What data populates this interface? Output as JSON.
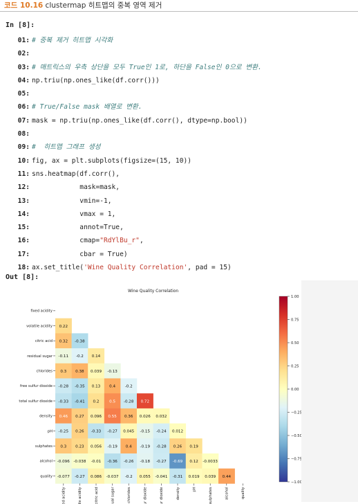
{
  "caption": {
    "number": "코드 10.16",
    "text": "clustermap 히트맵의 중복 영역 제거"
  },
  "input_label": "In [8]:",
  "output_label": "Out [8]:",
  "code_lines": [
    {
      "n": "01:",
      "type": "comment",
      "text": "# 중복 제거 히트맵 시각화"
    },
    {
      "n": "02:",
      "type": "code",
      "text": ""
    },
    {
      "n": "03:",
      "type": "comment",
      "text": "# 매트릭스의 우측 상단을 모두 True인 1로, 하단을 False인 0으로 변환."
    },
    {
      "n": "04:",
      "type": "code",
      "text": "np.triu(np.ones_like(df.corr()))"
    },
    {
      "n": "05:",
      "type": "code",
      "text": ""
    },
    {
      "n": "06:",
      "type": "comment",
      "text": "# True/False mask 배열로 변환."
    },
    {
      "n": "07:",
      "type": "code",
      "text": "mask = np.triu(np.ones_like(df.corr(), dtype=np.bool))"
    },
    {
      "n": "08:",
      "type": "code",
      "text": ""
    },
    {
      "n": "09:",
      "type": "comment",
      "text": "#  히트맵 그래프 생성"
    },
    {
      "n": "10:",
      "type": "code",
      "text": "fig, ax = plt.subplots(figsize=(15, 10))"
    },
    {
      "n": "11:",
      "type": "code",
      "text": "sns.heatmap(df.corr(),"
    },
    {
      "n": "12:",
      "type": "code",
      "text": "            mask=mask,"
    },
    {
      "n": "13:",
      "type": "code",
      "text": "            vmin=-1,"
    },
    {
      "n": "14:",
      "type": "code",
      "text": "            vmax = 1,"
    },
    {
      "n": "15:",
      "type": "code",
      "text": "            annot=True,"
    },
    {
      "n": "16:",
      "type": "code",
      "pre": "            cmap=",
      "str": "\"RdYlBu_r\"",
      "post": ","
    },
    {
      "n": "17:",
      "type": "code",
      "text": "            cbar = True)"
    },
    {
      "n": "18:",
      "type": "code",
      "pre": "ax.set_title(",
      "str": "'Wine Quality Correlation'",
      "post": ", pad = 15)"
    }
  ],
  "chart_data": {
    "type": "heatmap",
    "title": "Wine Quality Correlation",
    "labels": [
      "fixed acidity",
      "volatile acidity",
      "citric acid",
      "residual sugar",
      "chlorides",
      "free sulfur dioxide",
      "total sulfur dioxide",
      "density",
      "pH",
      "sulphates",
      "alcohol",
      "quality"
    ],
    "mask": "upper triangle incl. diagonal",
    "values": [
      [],
      [
        0.22
      ],
      [
        0.32,
        -0.38
      ],
      [
        -0.11,
        -0.2,
        0.14
      ],
      [
        0.3,
        0.38,
        0.039,
        -0.13
      ],
      [
        -0.28,
        -0.35,
        0.13,
        0.4,
        -0.2
      ],
      [
        -0.33,
        -0.41,
        0.2,
        0.5,
        -0.28,
        0.72
      ],
      [
        0.46,
        0.27,
        0.096,
        0.55,
        0.36,
        0.026,
        0.032
      ],
      [
        -0.25,
        0.26,
        -0.33,
        -0.27,
        0.045,
        -0.15,
        -0.24,
        0.012
      ],
      [
        0.3,
        0.23,
        0.056,
        -0.19,
        0.4,
        -0.19,
        -0.28,
        0.26,
        0.19
      ],
      [
        -0.096,
        -0.038,
        -0.01,
        -0.36,
        -0.26,
        -0.18,
        -0.27,
        -0.69,
        0.12,
        -0.0033
      ],
      [
        -0.077,
        -0.27,
        0.086,
        -0.037,
        -0.2,
        0.055,
        -0.041,
        -0.31,
        0.019,
        0.039,
        0.44
      ]
    ],
    "labels_text": [
      [],
      [
        "0.22"
      ],
      [
        "0.32",
        "-0.38"
      ],
      [
        "-0.11",
        "-0.2",
        "0.14"
      ],
      [
        "0.3",
        "0.38",
        "0.039",
        "-0.13"
      ],
      [
        "-0.28",
        "-0.35",
        "0.13",
        "0.4",
        "-0.2"
      ],
      [
        "-0.33",
        "-0.41",
        "0.2",
        "0.5",
        "-0.28",
        "0.72"
      ],
      [
        "0.46",
        "0.27",
        "0.096",
        "0.55",
        "0.36",
        "0.026",
        "0.032"
      ],
      [
        "-0.25",
        "0.26",
        "-0.33",
        "-0.27",
        "0.045",
        "-0.15",
        "-0.24",
        "0.012"
      ],
      [
        "0.3",
        "0.23",
        "0.056",
        "-0.19",
        "0.4",
        "-0.19",
        "-0.28",
        "0.26",
        "0.19"
      ],
      [
        "-0.096",
        "-0.038",
        "-0.01",
        "-0.36",
        "-0.26",
        "-0.18",
        "-0.27",
        "-0.69",
        "0.12",
        "-0.0033"
      ],
      [
        "-0.077",
        "-0.27",
        "0.086",
        "-0.037",
        "-0.2",
        "0.055",
        "-0.041",
        "-0.31",
        "0.019",
        "0.039",
        "0.44"
      ]
    ],
    "vmin": -1,
    "vmax": 1,
    "cmap": "RdYlBu_r",
    "colorbar_ticks": [
      1.0,
      0.75,
      0.5,
      0.25,
      0.0,
      -0.25,
      -0.5,
      -0.75,
      -1.0
    ],
    "colorbar_tick_labels": [
      "1.00",
      "0.75",
      "0.50",
      "0.25",
      "0.00",
      "−0.25",
      "−0.50",
      "−0.75",
      "−1.00"
    ]
  },
  "colors": {
    "caption_accent": "#e07b26",
    "comment": "#3f7f7f",
    "string": "#c0392b"
  }
}
